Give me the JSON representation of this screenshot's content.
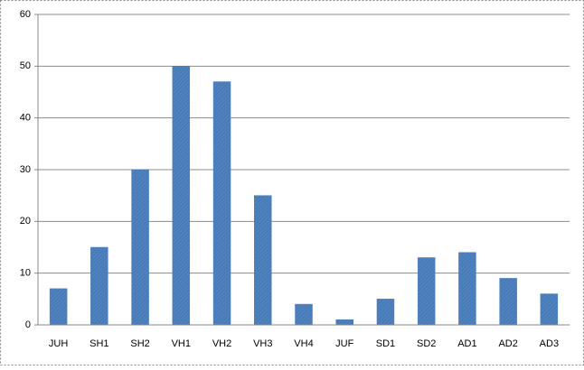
{
  "chart_data": {
    "type": "bar",
    "categories": [
      "JUH",
      "SH1",
      "SH2",
      "VH1",
      "VH2",
      "VH3",
      "VH4",
      "JUF",
      "SD1",
      "SD2",
      "AD1",
      "AD2",
      "AD3"
    ],
    "values": [
      7,
      15,
      30,
      50,
      47,
      25,
      4,
      1,
      5,
      13,
      14,
      9,
      6
    ],
    "color": "#4a7ebb",
    "ylim": [
      0,
      60
    ],
    "yticks": [
      0,
      10,
      20,
      30,
      40,
      50,
      60
    ],
    "grid": true
  }
}
